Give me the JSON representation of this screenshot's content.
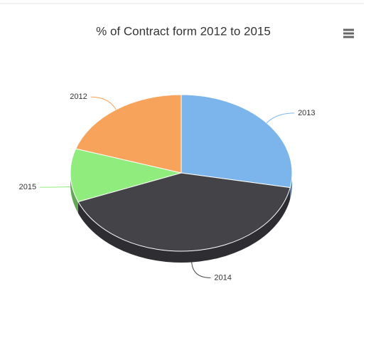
{
  "chart_data": {
    "type": "pie",
    "title": "% of Contract form 2012 to 2015",
    "categories": [
      "2013",
      "2014",
      "2015",
      "2012"
    ],
    "values": [
      28,
      41,
      11,
      20
    ],
    "colors": [
      "#7cb5ec",
      "#434348",
      "#90ed7d",
      "#f7a35c"
    ]
  }
}
